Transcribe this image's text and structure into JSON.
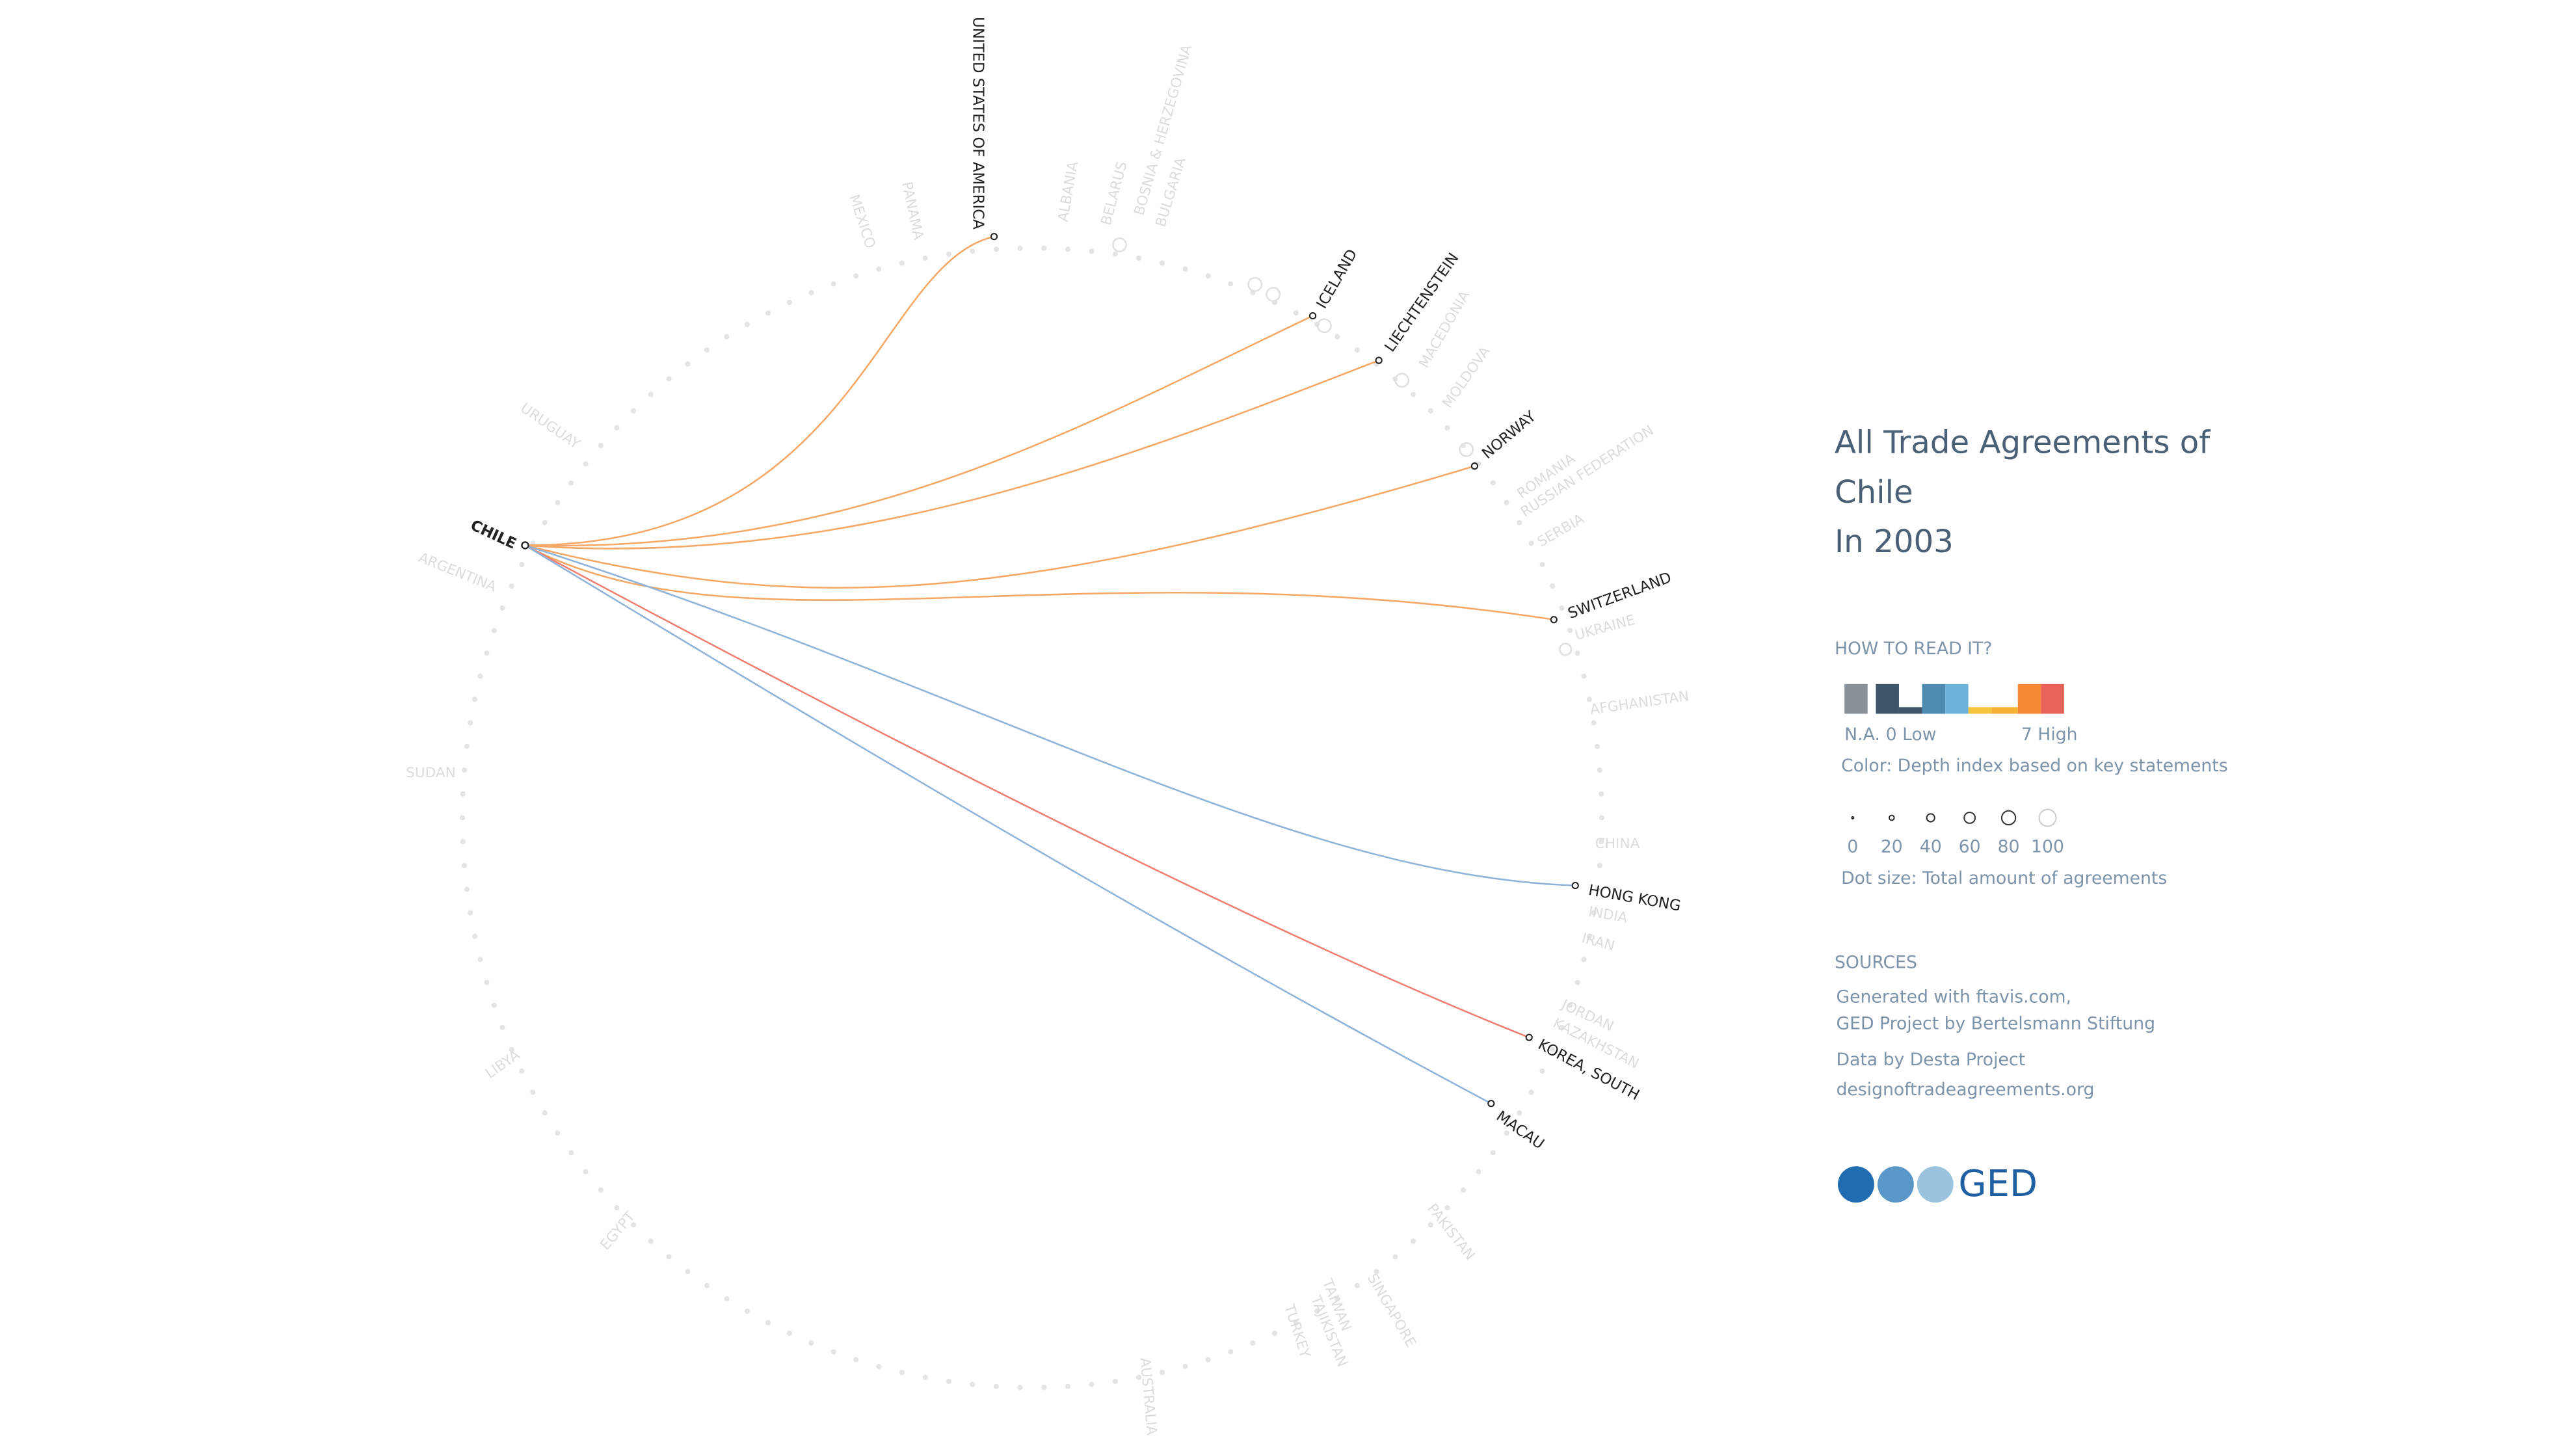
{
  "title": [
    "All Trade Agreements of",
    "Chile",
    "In 2003"
  ],
  "legend": {
    "heading": "HOW TO READ IT?",
    "color_labels": [
      "N.A.",
      "0 Low",
      "7 High"
    ],
    "color_caption": "Color: Depth index based on key statements",
    "size_labels": [
      "0",
      "20",
      "40",
      "60",
      "80",
      "100"
    ],
    "size_caption": "Dot size: Total amount of agreements"
  },
  "sources": {
    "heading": "SOURCES",
    "lines": [
      "Generated with ftavis.com,",
      "GED Project by Bertelsmann Stiftung",
      "Data by Desta Project",
      "designoftradeagreements.org"
    ]
  },
  "logo": "GED",
  "focus": "CHILE",
  "partners": [
    {
      "label": "UNITED STATES OF AMERICA",
      "color": "#f5a865"
    },
    {
      "label": "ICELAND",
      "color": "#f5a865"
    },
    {
      "label": "LIECHTENSTEIN",
      "color": "#f5a865"
    },
    {
      "label": "NORWAY",
      "color": "#f5a865"
    },
    {
      "label": "SWITZERLAND",
      "color": "#f5a865"
    },
    {
      "label": "HONG KONG",
      "color": "#8fb4d9"
    },
    {
      "label": "KOREA, SOUTH",
      "color": "#ee7f72"
    },
    {
      "label": "MACAU",
      "color": "#8fb4d9"
    }
  ],
  "other_countries": [
    "MEXICO",
    "PANAMA",
    "ALBANIA",
    "BELARUS",
    "BOSNIA & HERZEGOVINA",
    "BULGARIA",
    "MACEDONIA",
    "MOLDOVA",
    "ROMANIA",
    "RUSSIAN FEDERATION",
    "SERBIA",
    "UKRAINE",
    "AFGHANISTAN",
    "CHINA",
    "INDIA",
    "IRAN",
    "JORDAN",
    "KAZAKHSTAN",
    "PAKISTAN",
    "SINGAPORE",
    "TAIWAN",
    "TAJIKISTAN",
    "TURKEY",
    "AUSTRALIA",
    "URUGUAY",
    "ARGENTINA",
    "SUDAN",
    "LIBYA",
    "EGYPT"
  ]
}
